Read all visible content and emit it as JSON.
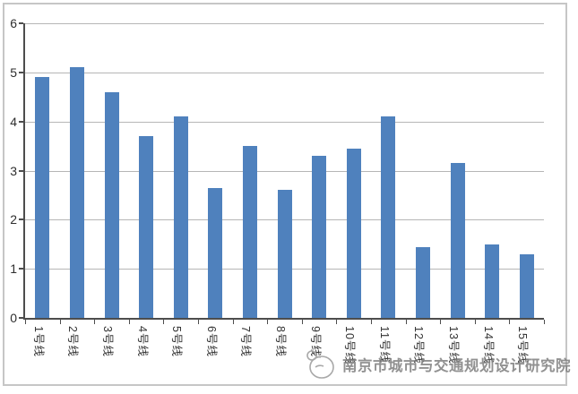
{
  "chart_data": {
    "type": "bar",
    "title": "",
    "xlabel": "",
    "ylabel": "",
    "categories": [
      "1号线",
      "2号线",
      "3号线",
      "4号线",
      "5号线",
      "6号线",
      "7号线",
      "8号线",
      "9号线",
      "10号线",
      "11号线",
      "12号线",
      "13号线",
      "14号线",
      "15号线"
    ],
    "values": [
      4.9,
      5.1,
      4.6,
      3.7,
      4.1,
      2.65,
      3.5,
      2.6,
      3.3,
      3.45,
      4.1,
      1.45,
      3.15,
      1.5,
      1.3
    ],
    "ylim": [
      0,
      6
    ],
    "yticks": [
      0,
      1,
      2,
      3,
      4,
      5,
      6
    ],
    "grid": true,
    "legend": false,
    "bar_color": "#4f81bd",
    "gridline_color": "#b6b6b6",
    "axis_color": "#4d4d4d",
    "tick_label_color": "#2e2e2e",
    "category_label_color": "#333333"
  },
  "watermark": {
    "text": "南京市城市与交通规划设计研究院",
    "color": "#7e7e7e"
  }
}
